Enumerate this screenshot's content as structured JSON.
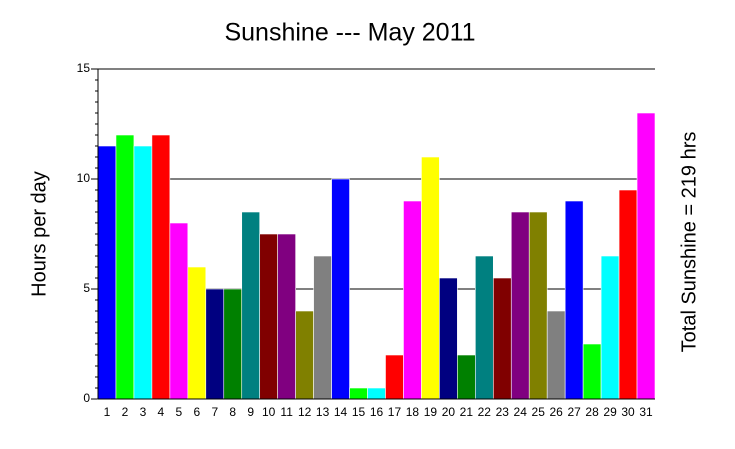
{
  "chart_data": {
    "type": "bar",
    "title": "Sunshine --- May 2011",
    "y_label": "Hours per day",
    "annotation": "Total Sunshine = 219 hrs",
    "categories": [
      "1",
      "2",
      "3",
      "4",
      "5",
      "6",
      "7",
      "8",
      "9",
      "10",
      "11",
      "12",
      "13",
      "14",
      "15",
      "16",
      "17",
      "18",
      "19",
      "20",
      "21",
      "22",
      "23",
      "24",
      "25",
      "26",
      "27",
      "28",
      "29",
      "30",
      "31"
    ],
    "values": [
      11.5,
      12,
      11.5,
      12,
      8,
      6,
      5,
      5,
      8.5,
      7.5,
      7.5,
      4,
      6.5,
      10,
      0.5,
      0.5,
      2,
      9,
      11,
      5.5,
      2,
      6.5,
      5.5,
      8.5,
      8.5,
      4,
      9,
      2.5,
      6.5,
      9.5,
      13
    ],
    "colors": [
      "#0000ff",
      "#00ff00",
      "#00ffff",
      "#ff0000",
      "#ff00ff",
      "#ffff00",
      "#000080",
      "#008000",
      "#008080",
      "#800000",
      "#800080",
      "#808000",
      "#808080",
      "#0000ff",
      "#00ff00",
      "#00ffff",
      "#ff0000",
      "#ff00ff",
      "#ffff00",
      "#000080",
      "#008000",
      "#008080",
      "#800000",
      "#800080",
      "#808000",
      "#808080",
      "#0000ff",
      "#00ff00",
      "#00ffff",
      "#ff0000",
      "#ff00ff"
    ],
    "ylim": [
      0,
      15
    ],
    "yticks": [
      0,
      5,
      10,
      15
    ],
    "grid": true
  }
}
